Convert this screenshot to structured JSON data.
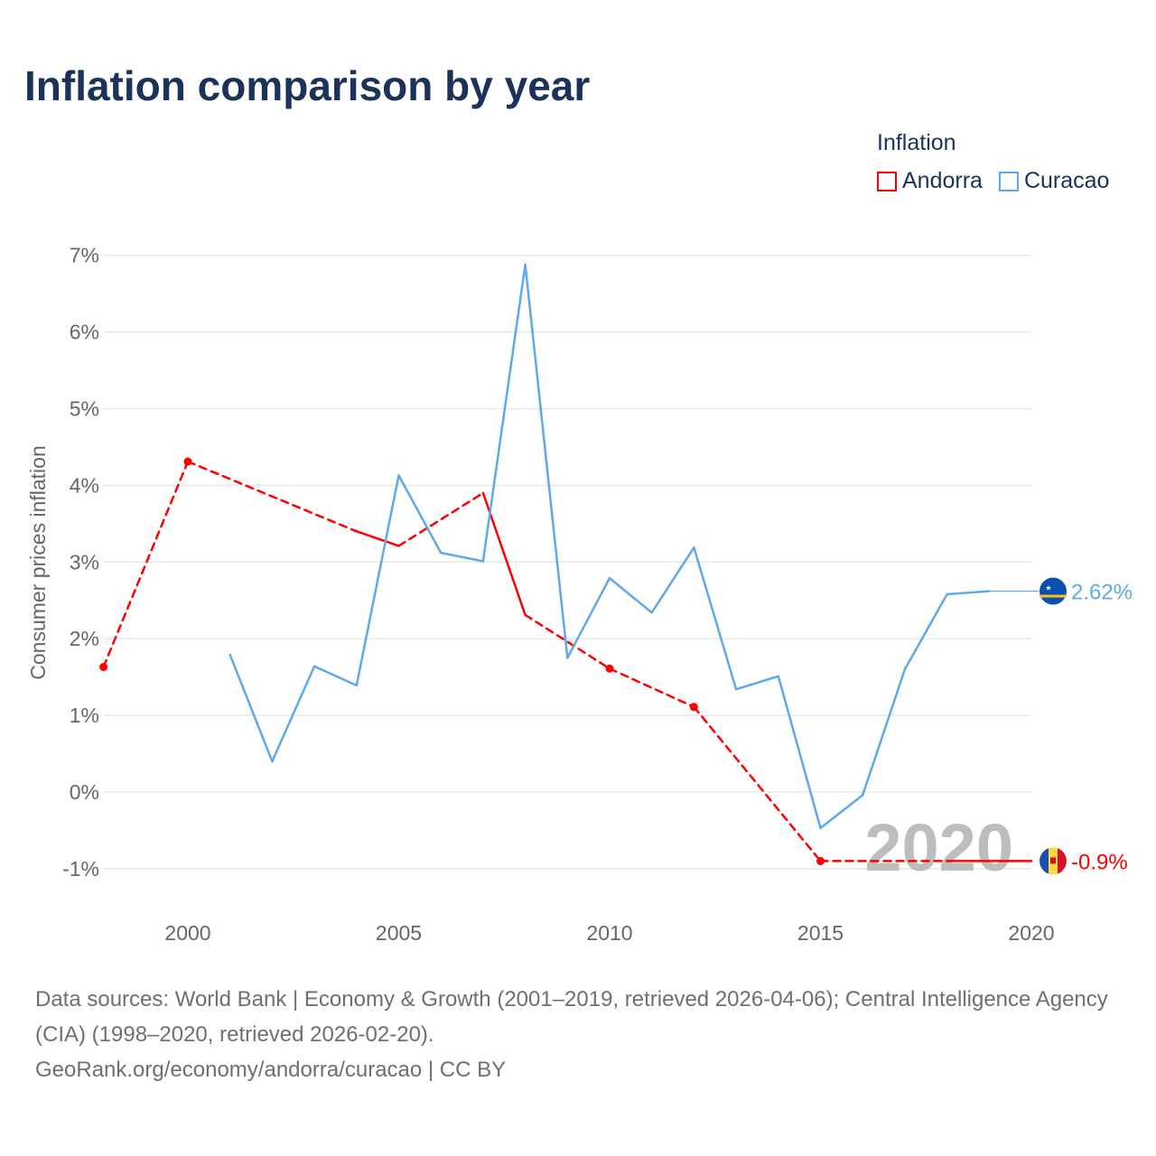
{
  "title": "Inflation comparison by year",
  "legend": {
    "title": "Inflation",
    "items": [
      {
        "name": "Andorra",
        "color": "#ff0000"
      },
      {
        "name": "Curacao",
        "color": "#5ea8ec"
      }
    ]
  },
  "chart_data": {
    "type": "line",
    "title": "Inflation comparison by year",
    "xlabel": "",
    "ylabel": "Consumer prices inflation",
    "xlim": [
      1998,
      2020
    ],
    "ylim": [
      -1.5,
      7.2
    ],
    "x_ticks": [
      2000,
      2005,
      2010,
      2015,
      2020
    ],
    "y_ticks": [
      -1,
      0,
      1,
      2,
      3,
      4,
      5,
      6,
      7
    ],
    "y_tick_labels": [
      "-1%",
      "0%",
      "1%",
      "2%",
      "3%",
      "4%",
      "5%",
      "6%",
      "7%"
    ],
    "grid": true,
    "legend_position": "top-right",
    "year_watermark": "2020",
    "series": [
      {
        "name": "Andorra",
        "color": "#ff0000",
        "end_label": "-0.9%",
        "x": [
          1998,
          2000,
          2004,
          2005,
          2007,
          2008,
          2010,
          2012,
          2015,
          2018,
          2019,
          2020
        ],
        "y": [
          1.63,
          4.31,
          3.4,
          3.21,
          3.9,
          2.31,
          1.61,
          1.11,
          -0.9,
          -0.9,
          -0.9,
          -0.9
        ]
      },
      {
        "name": "Curacao",
        "color": "#5ea8ec",
        "end_label": "2.62%",
        "x": [
          2001,
          2002,
          2003,
          2004,
          2005,
          2006,
          2007,
          2008,
          2009,
          2010,
          2011,
          2012,
          2013,
          2014,
          2015,
          2016,
          2017,
          2018,
          2019
        ],
        "y": [
          1.79,
          0.4,
          1.64,
          1.39,
          4.13,
          3.12,
          3.01,
          6.88,
          1.75,
          2.79,
          2.34,
          3.19,
          1.34,
          1.51,
          -0.47,
          -0.04,
          1.6,
          2.58,
          2.62
        ]
      }
    ]
  },
  "footer": {
    "sources": "Data sources: World Bank | Economy & Growth (2001–2019, retrieved 2026-04-06); Central Intelligence Agency (CIA) (1998–2020, retrieved 2026-02-20).",
    "credit": "GeoRank.org/economy/andorra/curacao | CC BY"
  }
}
